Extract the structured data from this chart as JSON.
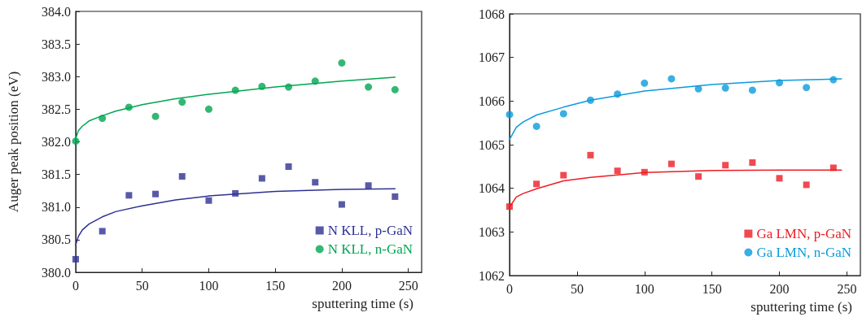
{
  "chart_data": [
    {
      "type": "scatter",
      "ylabel": "Auger peak position (eV)",
      "xlabel": "sputtering time (s)",
      "xlim": [
        0,
        260
      ],
      "xticks": [
        0,
        50,
        100,
        150,
        200,
        250
      ],
      "ylim": [
        380,
        384
      ],
      "yticks": [
        {
          "value": 380,
          "label": "380.0"
        },
        380.5,
        {
          "value": 381,
          "label": "381.0"
        },
        381.5,
        {
          "value": 382,
          "label": "382.0"
        },
        382.5,
        {
          "value": 383,
          "label": "383.0"
        },
        383.5,
        {
          "value": 384,
          "label": "384.0"
        }
      ],
      "grid": false,
      "legend": "bottom right",
      "series": [
        {
          "name": "N KLL, p-GaN",
          "color": "#2e3192",
          "marker": "square",
          "x": [
            0,
            20,
            40,
            60,
            80,
            100,
            120,
            140,
            160,
            180,
            200,
            220,
            240
          ],
          "values": [
            380.2,
            380.63,
            381.18,
            381.2,
            381.47,
            381.1,
            381.21,
            381.44,
            381.62,
            381.38,
            381.04,
            381.33,
            381.16
          ]
        },
        {
          "name": "N KLL, n-GaN",
          "color": "#00a651",
          "marker": "circle",
          "x": [
            0,
            20,
            40,
            60,
            80,
            100,
            120,
            140,
            160,
            180,
            200,
            220,
            240
          ],
          "values": [
            382.01,
            382.36,
            382.53,
            382.39,
            382.61,
            382.5,
            382.79,
            382.85,
            382.84,
            382.93,
            383.21,
            382.84,
            382.8
          ]
        },
        {
          "type": "line",
          "color": "#2e3192",
          "marker": "none",
          "line_style": "solid",
          "x": [
            0,
            2,
            5,
            10,
            20,
            30,
            50,
            75,
            100,
            150,
            200,
            240
          ],
          "values": [
            380.42,
            380.55,
            380.65,
            380.74,
            380.85,
            380.93,
            381.02,
            381.11,
            381.17,
            381.24,
            381.27,
            381.28
          ]
        },
        {
          "type": "line",
          "color": "#00a651",
          "marker": "none",
          "line_style": "solid",
          "x": [
            0,
            2,
            5,
            10,
            20,
            30,
            50,
            75,
            100,
            150,
            200,
            240
          ],
          "values": [
            382.05,
            382.17,
            382.24,
            382.32,
            382.4,
            382.47,
            382.57,
            382.66,
            382.73,
            382.84,
            382.93,
            382.99
          ]
        }
      ]
    },
    {
      "type": "scatter",
      "xlabel": "sputtering time (s)",
      "xlim": [
        0,
        260
      ],
      "xticks": [
        0,
        50,
        100,
        150,
        200,
        250
      ],
      "ylim": [
        1062,
        1068
      ],
      "yticks": [
        1062,
        1063,
        1064,
        1065,
        1066,
        1067,
        1068
      ],
      "grid": false,
      "legend": "bottom right",
      "series": [
        {
          "name": "Ga LMN, p-GaN",
          "color": "#ed1c24",
          "marker": "square",
          "x": [
            0,
            20,
            40,
            60,
            80,
            100,
            120,
            140,
            160,
            180,
            200,
            220,
            240
          ],
          "values": [
            1063.58,
            1064.1,
            1064.3,
            1064.76,
            1064.4,
            1064.37,
            1064.56,
            1064.27,
            1064.53,
            1064.59,
            1064.23,
            1064.08,
            1064.47
          ]
        },
        {
          "name": "Ga LMN, n-GaN",
          "color": "#0a9bdc",
          "marker": "circle",
          "x": [
            0,
            20,
            40,
            60,
            80,
            100,
            120,
            140,
            160,
            180,
            200,
            220,
            240
          ],
          "values": [
            1065.69,
            1065.42,
            1065.71,
            1066.02,
            1066.16,
            1066.41,
            1066.51,
            1066.28,
            1066.3,
            1066.25,
            1066.42,
            1066.31,
            1066.49
          ]
        },
        {
          "type": "line",
          "color": "#ed1c24",
          "marker": "none",
          "line_style": "solid",
          "x": [
            0,
            5,
            10,
            20,
            40,
            60,
            100,
            150,
            200,
            246
          ],
          "values": [
            1063.57,
            1063.8,
            1063.88,
            1063.99,
            1064.17,
            1064.25,
            1064.36,
            1064.41,
            1064.42,
            1064.42
          ]
        },
        {
          "type": "line",
          "color": "#0a9bdc",
          "marker": "none",
          "line_style": "solid",
          "x": [
            0,
            5,
            10,
            20,
            40,
            60,
            100,
            150,
            200,
            246
          ],
          "values": [
            1065.12,
            1065.4,
            1065.52,
            1065.68,
            1065.86,
            1066.02,
            1066.23,
            1066.38,
            1066.47,
            1066.51
          ]
        }
      ]
    }
  ]
}
